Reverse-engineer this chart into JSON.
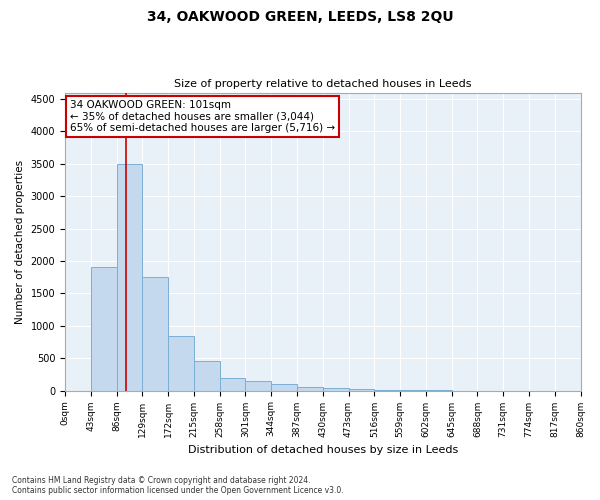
{
  "title": "34, OAKWOOD GREEN, LEEDS, LS8 2QU",
  "subtitle": "Size of property relative to detached houses in Leeds",
  "xlabel": "Distribution of detached houses by size in Leeds",
  "ylabel": "Number of detached properties",
  "bar_color": "#c5d9ee",
  "bar_edge_color": "#7bafd4",
  "background_color": "#e8f0f8",
  "tick_labels": [
    "0sqm",
    "43sqm",
    "86sqm",
    "129sqm",
    "172sqm",
    "215sqm",
    "258sqm",
    "301sqm",
    "344sqm",
    "387sqm",
    "430sqm",
    "473sqm",
    "516sqm",
    "559sqm",
    "602sqm",
    "645sqm",
    "688sqm",
    "731sqm",
    "774sqm",
    "817sqm",
    "860sqm"
  ],
  "bar_heights": [
    0,
    1900,
    3500,
    1750,
    850,
    450,
    200,
    150,
    100,
    55,
    40,
    20,
    8,
    4,
    2,
    1,
    0,
    0,
    0,
    0
  ],
  "ylim": [
    0,
    4600
  ],
  "yticks": [
    0,
    500,
    1000,
    1500,
    2000,
    2500,
    3000,
    3500,
    4000,
    4500
  ],
  "property_line_x": 2.35,
  "property_line_color": "#cc0000",
  "annotation_text": "34 OAKWOOD GREEN: 101sqm\n← 35% of detached houses are smaller (3,044)\n65% of semi-detached houses are larger (5,716) →",
  "annotation_box_color": "#ffffff",
  "annotation_box_edge_color": "#cc0000",
  "footer_line1": "Contains HM Land Registry data © Crown copyright and database right 2024.",
  "footer_line2": "Contains public sector information licensed under the Open Government Licence v3.0."
}
